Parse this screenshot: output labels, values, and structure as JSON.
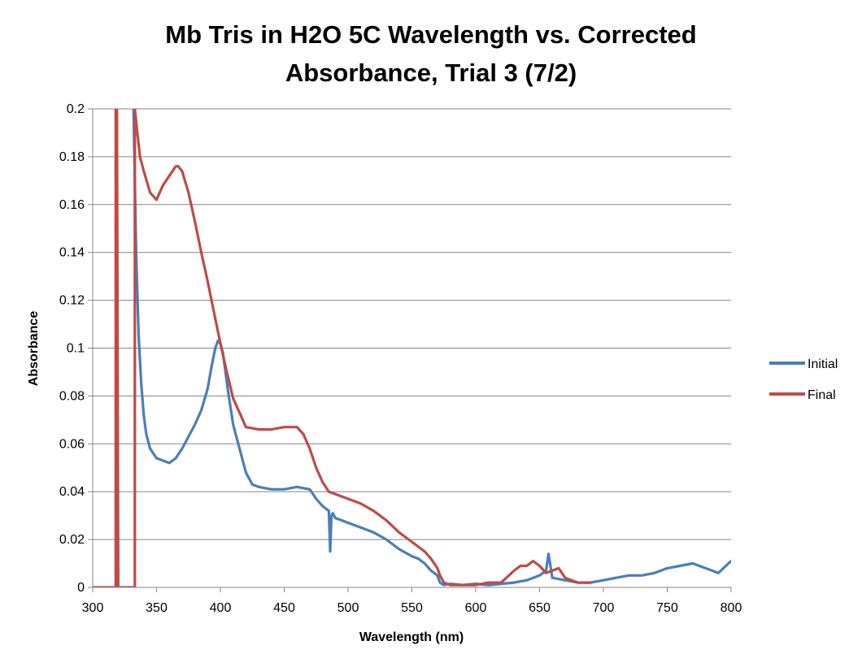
{
  "chart_data": {
    "type": "line",
    "title_lines": [
      "Mb Tris in H2O 5C Wavelength vs. Corrected",
      "Absorbance, Trial 3 (7/2)"
    ],
    "xlabel": "Wavelength (nm)",
    "ylabel": "Absorbance",
    "xlim": [
      300,
      800
    ],
    "ylim": [
      0,
      0.2
    ],
    "x_ticks": [
      300,
      350,
      400,
      450,
      500,
      550,
      600,
      650,
      700,
      750,
      800
    ],
    "y_ticks": [
      0,
      0.02,
      0.04,
      0.06,
      0.08,
      0.1,
      0.12,
      0.14,
      0.16,
      0.18,
      0.2
    ],
    "x_tick_labels": [
      "300",
      "350",
      "400",
      "450",
      "500",
      "550",
      "600",
      "650",
      "700",
      "750",
      "800"
    ],
    "y_tick_labels": [
      "0",
      "0.02",
      "0.04",
      "0.06",
      "0.08",
      "0.1",
      "0.12",
      "0.14",
      "0.16",
      "0.18",
      "0.2"
    ],
    "grid": "horizontal",
    "legend_position": "right",
    "series": [
      {
        "name": "Initial",
        "color": "#4a7ebb",
        "x": [
          332,
          333,
          334,
          336,
          338,
          340,
          342,
          345,
          350,
          355,
          360,
          365,
          370,
          375,
          380,
          385,
          390,
          393,
          396,
          398,
          400,
          402,
          404,
          406,
          408,
          410,
          415,
          420,
          425,
          430,
          440,
          450,
          460,
          470,
          475,
          480,
          485,
          486,
          487,
          488,
          490,
          495,
          500,
          510,
          520,
          530,
          540,
          550,
          555,
          560,
          565,
          570,
          572,
          575,
          580,
          590,
          600,
          610,
          620,
          630,
          640,
          650,
          655,
          657,
          660,
          670,
          680,
          690,
          700,
          710,
          720,
          730,
          740,
          750,
          760,
          770,
          780,
          790,
          800
        ],
        "y": [
          0.2,
          0.17,
          0.14,
          0.105,
          0.085,
          0.072,
          0.064,
          0.058,
          0.054,
          0.053,
          0.052,
          0.054,
          0.058,
          0.063,
          0.068,
          0.074,
          0.083,
          0.092,
          0.1,
          0.103,
          0.102,
          0.098,
          0.09,
          0.082,
          0.075,
          0.068,
          0.058,
          0.048,
          0.043,
          0.042,
          0.041,
          0.041,
          0.042,
          0.041,
          0.037,
          0.034,
          0.032,
          0.015,
          0.03,
          0.031,
          0.029,
          0.028,
          0.027,
          0.025,
          0.023,
          0.02,
          0.016,
          0.013,
          0.012,
          0.01,
          0.007,
          0.005,
          0.002,
          0.001,
          0.0015,
          0.001,
          0.0015,
          0.001,
          0.0015,
          0.002,
          0.003,
          0.005,
          0.007,
          0.014,
          0.004,
          0.003,
          0.002,
          0.002,
          0.003,
          0.004,
          0.005,
          0.005,
          0.006,
          0.008,
          0.009,
          0.01,
          0.008,
          0.006,
          0.011
        ]
      },
      {
        "name": "Final",
        "color": "#be4b48",
        "x": [
          300,
          318,
          318,
          319,
          320,
          333,
          333,
          335,
          337,
          340,
          345,
          350,
          355,
          360,
          365,
          367,
          370,
          375,
          380,
          385,
          390,
          395,
          400,
          405,
          410,
          415,
          420,
          430,
          440,
          450,
          460,
          465,
          470,
          475,
          480,
          485,
          490,
          495,
          500,
          510,
          520,
          530,
          540,
          550,
          560,
          565,
          570,
          572,
          575,
          580,
          590,
          600,
          610,
          620,
          630,
          635,
          640,
          645,
          650,
          655,
          660,
          665,
          670,
          680,
          690
        ],
        "y": [
          0,
          0,
          0.2,
          0.2,
          0,
          0,
          0.2,
          0.19,
          0.18,
          0.174,
          0.165,
          0.162,
          0.168,
          0.172,
          0.176,
          0.176,
          0.174,
          0.165,
          0.153,
          0.14,
          0.128,
          0.115,
          0.102,
          0.09,
          0.079,
          0.073,
          0.067,
          0.066,
          0.066,
          0.067,
          0.067,
          0.064,
          0.058,
          0.05,
          0.044,
          0.04,
          0.039,
          0.038,
          0.037,
          0.035,
          0.032,
          0.028,
          0.023,
          0.019,
          0.015,
          0.012,
          0.008,
          0.005,
          0.002,
          0.001,
          0.001,
          0.001,
          0.002,
          0.002,
          0.007,
          0.009,
          0.009,
          0.011,
          0.009,
          0.006,
          0.007,
          0.008,
          0.004,
          0.002,
          0.002
        ]
      }
    ]
  }
}
